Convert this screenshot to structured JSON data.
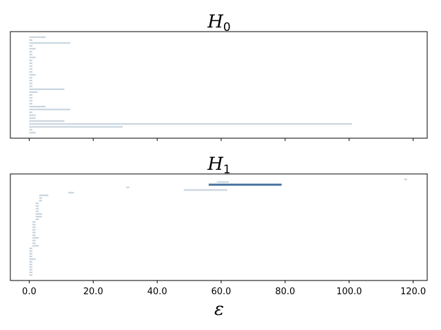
{
  "chart_data": {
    "type": "barcode",
    "xlim": [
      -5.9,
      124.4
    ],
    "xticks": [
      0,
      20,
      40,
      60,
      80,
      100,
      120
    ],
    "xtick_labels": [
      "0.0",
      "20.0",
      "40.0",
      "60.0",
      "80.0",
      "100.0",
      "120.0"
    ],
    "xlabel": "ε",
    "colors": {
      "bar": "#c8d4de",
      "highlight": "#4a74a0"
    },
    "panels": [
      {
        "title_main": "H",
        "title_sub": "0",
        "show_tick_labels": false,
        "bars": [
          [
            0,
            5.1
          ],
          [
            0,
            1.0
          ],
          [
            0,
            12.9
          ],
          [
            0,
            1.0
          ],
          [
            0,
            2.0
          ],
          [
            0,
            1.0
          ],
          [
            0,
            1.0
          ],
          [
            0,
            2.0
          ],
          [
            0,
            1.0
          ],
          [
            0,
            1.0
          ],
          [
            0,
            1.0
          ],
          [
            0,
            1.0
          ],
          [
            0,
            1.0
          ],
          [
            0,
            2.0
          ],
          [
            0,
            1.0
          ],
          [
            0,
            1.0
          ],
          [
            0,
            1.0
          ],
          [
            0,
            1.0
          ],
          [
            0,
            11.0
          ],
          [
            0,
            2.6
          ],
          [
            0,
            1.0
          ],
          [
            0,
            1.0
          ],
          [
            0,
            1.0
          ],
          [
            0,
            1.0
          ],
          [
            0,
            5.1
          ],
          [
            0,
            12.9
          ],
          [
            0,
            1.0
          ],
          [
            0,
            2.0
          ],
          [
            0,
            2.0
          ],
          [
            0,
            11.0
          ],
          [
            0,
            100.9
          ],
          [
            0,
            29.2
          ],
          [
            0,
            1.0
          ],
          [
            0,
            2.0
          ]
        ],
        "highlight_index": null
      },
      {
        "title_main": "H",
        "title_sub": "1",
        "show_tick_labels": true,
        "bars": [
          [
            117.2,
            118.1
          ],
          [
            58.6,
            62.4
          ],
          [
            56.1,
            78.9
          ],
          [
            30.3,
            31.3
          ],
          [
            48.3,
            61.9
          ],
          [
            12.2,
            14.0
          ],
          [
            3.1,
            6.0
          ],
          [
            3.1,
            4.0
          ],
          [
            3.1,
            4.0
          ],
          [
            2.0,
            3.0
          ],
          [
            2.0,
            3.0
          ],
          [
            2.0,
            3.0
          ],
          [
            2.0,
            3.0
          ],
          [
            2.0,
            4.0
          ],
          [
            2.0,
            4.0
          ],
          [
            2.0,
            3.0
          ],
          [
            1.0,
            2.0
          ],
          [
            1.0,
            2.0
          ],
          [
            1.0,
            2.0
          ],
          [
            1.0,
            2.0
          ],
          [
            1.0,
            2.0
          ],
          [
            1.0,
            2.0
          ],
          [
            1.0,
            3.0
          ],
          [
            1.0,
            2.0
          ],
          [
            1.0,
            2.0
          ],
          [
            1.0,
            3.0
          ],
          [
            0,
            1.0
          ],
          [
            0,
            1.0
          ],
          [
            0,
            1.0
          ],
          [
            0,
            1.0
          ],
          [
            0,
            2.0
          ],
          [
            0,
            1.0
          ],
          [
            0,
            1.0
          ],
          [
            0,
            1.0
          ],
          [
            0,
            1.0
          ],
          [
            0,
            1.0
          ],
          [
            0,
            1.0
          ]
        ],
        "highlight_index": 2
      }
    ]
  }
}
